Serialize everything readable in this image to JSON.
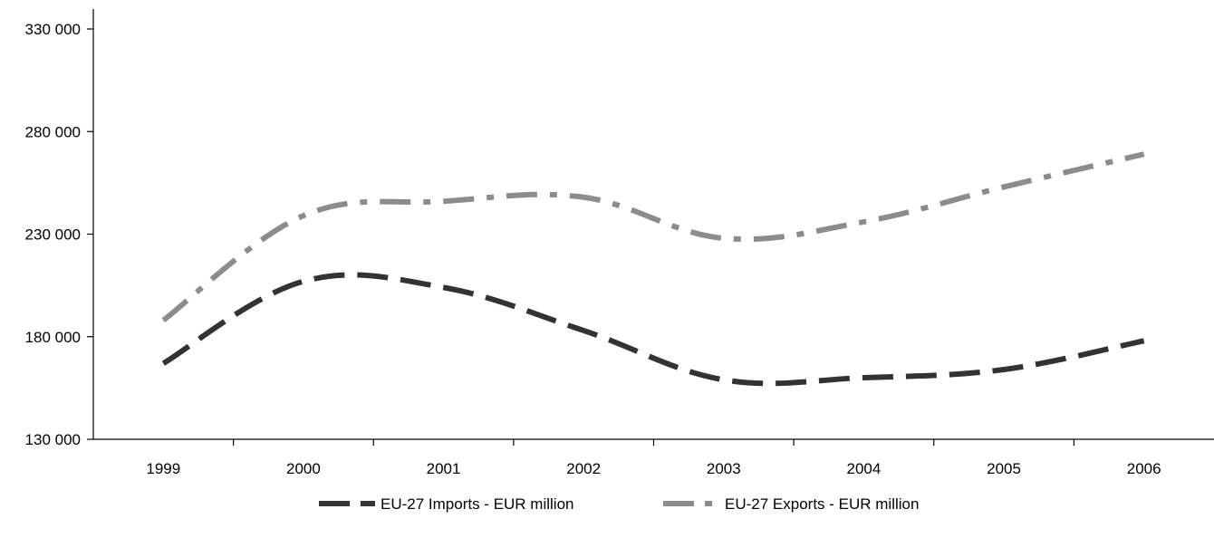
{
  "chart_data": {
    "type": "line",
    "title": "",
    "xlabel": "",
    "ylabel": "",
    "categories": [
      "1999",
      "2000",
      "2001",
      "2002",
      "2003",
      "2004",
      "2005",
      "2006"
    ],
    "ylim": [
      130000,
      330000
    ],
    "yticks": [
      130000,
      180000,
      230000,
      280000,
      330000
    ],
    "ytick_labels": [
      "130 000",
      "180 000",
      "230 000",
      "280 000",
      "330 000"
    ],
    "grid": false,
    "legend_position": "bottom",
    "series": [
      {
        "name": "EU-27 Imports - EUR million",
        "values": [
          167000,
          207000,
          204000,
          183000,
          159000,
          160000,
          164000,
          178000
        ],
        "color": "#333333",
        "dash": "long-dash"
      },
      {
        "name": "EU-27 Exports - EUR million",
        "values": [
          188000,
          239000,
          246000,
          248000,
          228000,
          236000,
          253000,
          269000
        ],
        "color": "#8c8c8c",
        "dash": "dash-dot"
      }
    ]
  }
}
